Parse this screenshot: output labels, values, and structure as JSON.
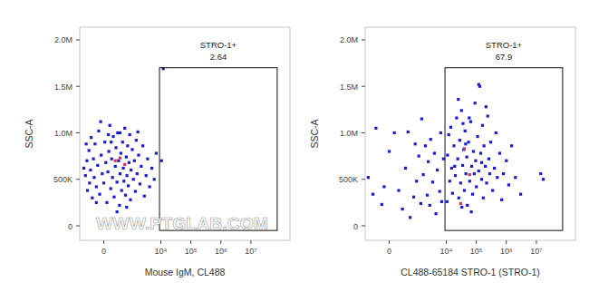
{
  "chart_data": [
    {
      "type": "scatter",
      "x_label": "Mouse IgM, CL488",
      "y_label": "SSC-A",
      "log": "x",
      "grid": false,
      "watermark": "WWW.PTGLAB.COM",
      "xlim": [
        -770,
        200000000
      ],
      "ylim": [
        -156000,
        2136000
      ],
      "xticks": [
        0,
        {
          "value": 10000,
          "label": "10⁴"
        },
        {
          "value": 100000,
          "label": "10⁵"
        },
        {
          "value": 1000000,
          "label": "10⁶"
        },
        {
          "value": 10000000,
          "label": "10⁷"
        }
      ],
      "yticks": [
        0,
        {
          "value": 500000,
          "label": "500K"
        },
        {
          "value": 1000000,
          "label": "1.0M"
        },
        {
          "value": 1500000,
          "label": "1.5M"
        },
        {
          "value": 2000000,
          "label": "2.0M"
        }
      ],
      "gate": {
        "label": "STRO-1+",
        "percent": 2.64,
        "x": [
          9000,
          75000000
        ],
        "y": [
          -50000,
          1700000
        ]
      },
      "series": [
        {
          "color": "#1c1ccf",
          "marker": "square",
          "x": [
            -550,
            -480,
            -420,
            -400,
            -350,
            -330,
            -300,
            -280,
            -250,
            -220,
            -200,
            -180,
            -150,
            -120,
            -100,
            -80,
            -50,
            -30,
            0,
            20,
            40,
            60,
            80,
            100,
            120,
            140,
            160,
            180,
            200,
            220,
            250,
            270,
            300,
            320,
            350,
            380,
            400,
            430,
            460,
            500,
            530,
            560,
            600,
            640,
            680,
            720,
            760,
            800,
            850,
            900,
            950,
            1000,
            1100,
            1200,
            1300,
            1400,
            1500,
            1600,
            1800,
            2000,
            2200,
            2500,
            2800,
            3200,
            3600,
            4200,
            5000,
            6000,
            7000,
            300,
            -60,
            150,
            700,
            10500,
            12000,
            -450,
            -150,
            1700,
            400,
            90
          ],
          "values": [
            620000,
            540000,
            700000,
            380000,
            810000,
            460000,
            600000,
            950000,
            300000,
            720000,
            520000,
            880000,
            420000,
            650000,
            1020000,
            340000,
            760000,
            560000,
            460000,
            900000,
            680000,
            250000,
            580000,
            800000,
            1080000,
            400000,
            720000,
            520000,
            960000,
            310000,
            640000,
            840000,
            470000,
            1000000,
            700000,
            220000,
            560000,
            780000,
            380000,
            900000,
            620000,
            480000,
            1050000,
            330000,
            740000,
            540000,
            860000,
            430000,
            680000,
            980000,
            280000,
            600000,
            820000,
            500000,
            700000,
            370000,
            920000,
            560000,
            760000,
            450000,
            640000,
            860000,
            320000,
            540000,
            720000,
            420000,
            620000,
            500000,
            780000,
            150000,
            1120000,
            900000,
            200000,
            700000,
            1690000,
            880000,
            250000,
            1010000,
            1000000,
            980000
          ]
        },
        {
          "color": "#e0305a",
          "marker": "square",
          "x": [
            250,
            400,
            600
          ],
          "values": [
            700000,
            730000,
            660000
          ]
        }
      ]
    },
    {
      "type": "scatter",
      "x_label": "CL488-65184 STRO-1 (STRO-1)",
      "y_label": "SSC-A",
      "log": "x",
      "grid": false,
      "xlim": [
        -770,
        200000000
      ],
      "ylim": [
        -156000,
        2136000
      ],
      "xticks": [
        0,
        {
          "value": 10000,
          "label": "10⁴"
        },
        {
          "value": 100000,
          "label": "10⁵"
        },
        {
          "value": 1000000,
          "label": "10⁶"
        },
        {
          "value": 10000000,
          "label": "10⁷"
        }
      ],
      "yticks": [
        0,
        {
          "value": 500000,
          "label": "500K"
        },
        {
          "value": 1000000,
          "label": "1.0M"
        },
        {
          "value": 1500000,
          "label": "1.5M"
        },
        {
          "value": 2000000,
          "label": "2.0M"
        }
      ],
      "gate": {
        "label": "STRO-1+",
        "percent": 67.9,
        "x": [
          9000,
          75000000
        ],
        "y": [
          -50000,
          1700000
        ]
      },
      "series": [
        {
          "color": "#1c1ccf",
          "marker": "square",
          "x": [
            -600,
            -300,
            -150,
            -100,
            0,
            100,
            200,
            300,
            400,
            500,
            600,
            800,
            900,
            1000,
            1200,
            1400,
            1500,
            1700,
            2000,
            2300,
            2500,
            2800,
            3000,
            3500,
            4000,
            4500,
            5000,
            6000,
            6500,
            7000,
            8000,
            -400,
            10500,
            11000,
            12000,
            13000,
            14000,
            15000,
            16000,
            18000,
            20000,
            22000,
            24000,
            26000,
            28000,
            30000,
            32000,
            35000,
            38000,
            40000,
            42000,
            45000,
            48000,
            50000,
            55000,
            60000,
            65000,
            70000,
            75000,
            80000,
            85000,
            90000,
            95000,
            100000,
            110000,
            120000,
            130000,
            140000,
            150000,
            160000,
            170000,
            180000,
            200000,
            220000,
            240000,
            260000,
            280000,
            300000,
            350000,
            400000,
            450000,
            500000,
            600000,
            700000,
            800000,
            1000000,
            1200000,
            1500000,
            2000000,
            3000000,
            14000000,
            17000000,
            25000,
            33000,
            58000,
            120000,
            68000,
            210000,
            44000,
            36000,
            150000,
            19000
          ],
          "values": [
            520000,
            1050000,
            230000,
            420000,
            800000,
            1000000,
            380000,
            180000,
            620000,
            1010000,
            90000,
            310000,
            880000,
            480000,
            750000,
            240000,
            1150000,
            550000,
            860000,
            330000,
            690000,
            220000,
            930000,
            470000,
            780000,
            130000,
            600000,
            370000,
            1000000,
            260000,
            720000,
            340000,
            260000,
            760000,
            980000,
            480000,
            1060000,
            620000,
            350000,
            860000,
            540000,
            1160000,
            720000,
            300000,
            920000,
            460000,
            1240000,
            650000,
            820000,
            380000,
            1020000,
            560000,
            740000,
            220000,
            900000,
            480000,
            1120000,
            640000,
            340000,
            800000,
            560000,
            1320000,
            700000,
            420000,
            960000,
            590000,
            1500000,
            780000,
            500000,
            1080000,
            300000,
            860000,
            640000,
            460000,
            1180000,
            720000,
            560000,
            900000,
            380000,
            620000,
            1000000,
            520000,
            780000,
            280000,
            560000,
            700000,
            440000,
            860000,
            520000,
            340000,
            560000,
            500000,
            1360000,
            200000,
            1160000,
            1520000,
            150000,
            1280000,
            880000,
            1100000,
            680000,
            640000
          ]
        },
        {
          "color": "#e0305a",
          "marker": "square",
          "x": [
            40000,
            60000,
            30000
          ],
          "values": [
            830000,
            550000,
            240000
          ]
        }
      ]
    }
  ]
}
